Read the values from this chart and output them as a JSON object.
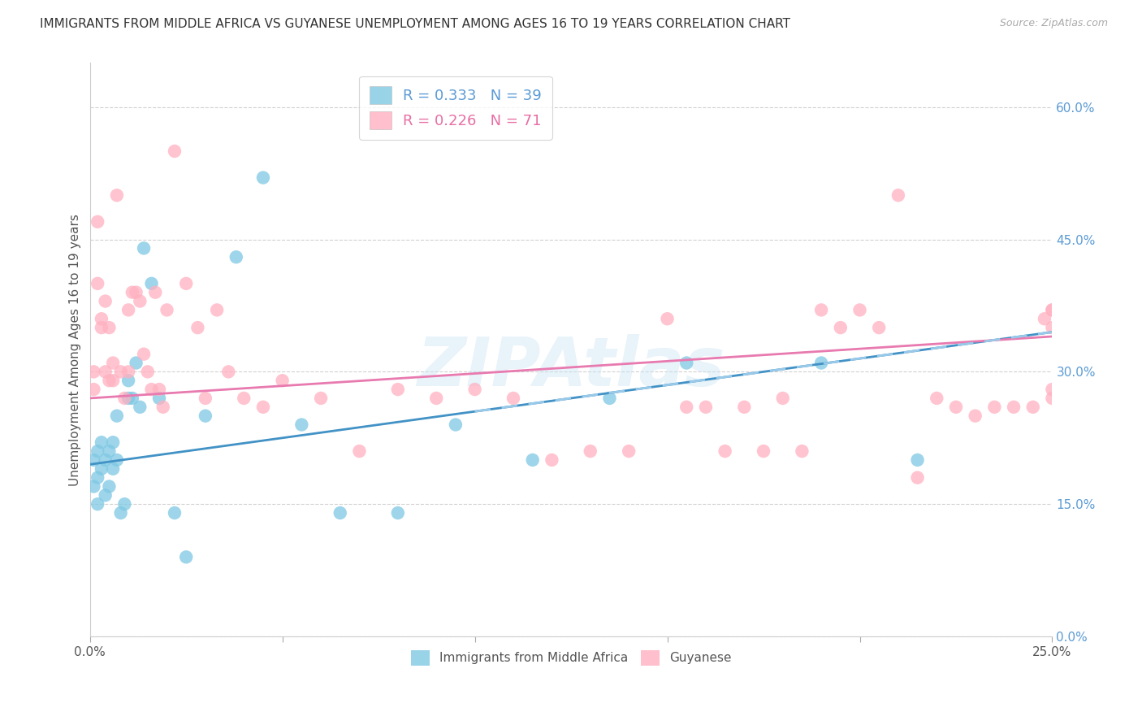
{
  "title": "IMMIGRANTS FROM MIDDLE AFRICA VS GUYANESE UNEMPLOYMENT AMONG AGES 16 TO 19 YEARS CORRELATION CHART",
  "source": "Source: ZipAtlas.com",
  "ylabel": "Unemployment Among Ages 16 to 19 years",
  "series1_label": "Immigrants from Middle Africa",
  "series2_label": "Guyanese",
  "R1": 0.333,
  "N1": 39,
  "R2": 0.226,
  "N2": 71,
  "color1": "#7ec8e3",
  "color2": "#ffb0c0",
  "trendline1_color": "#4292c6",
  "trendline1_dash_color": "#99c9e8",
  "trendline2_color": "#e87ab0",
  "xlim": [
    0.0,
    0.25
  ],
  "ylim": [
    0.0,
    0.65
  ],
  "right_yticks": [
    0.0,
    0.15,
    0.3,
    0.45,
    0.6
  ],
  "right_yticklabels": [
    "0.0%",
    "15.0%",
    "30.0%",
    "45.0%",
    "60.0%"
  ],
  "bottom_xticks": [
    0.0,
    0.05,
    0.1,
    0.15,
    0.2,
    0.25
  ],
  "bottom_xticklabels": [
    "0.0%",
    "",
    "",
    "",
    "",
    "25.0%"
  ],
  "watermark": "ZIPAtlas",
  "series1_x": [
    0.001,
    0.001,
    0.002,
    0.002,
    0.002,
    0.003,
    0.003,
    0.004,
    0.004,
    0.005,
    0.005,
    0.006,
    0.006,
    0.007,
    0.007,
    0.008,
    0.009,
    0.01,
    0.01,
    0.011,
    0.012,
    0.013,
    0.014,
    0.016,
    0.018,
    0.022,
    0.025,
    0.03,
    0.038,
    0.045,
    0.055,
    0.065,
    0.08,
    0.095,
    0.115,
    0.135,
    0.155,
    0.19,
    0.215
  ],
  "series1_y": [
    0.2,
    0.17,
    0.21,
    0.18,
    0.15,
    0.19,
    0.22,
    0.2,
    0.16,
    0.21,
    0.17,
    0.22,
    0.19,
    0.25,
    0.2,
    0.14,
    0.15,
    0.27,
    0.29,
    0.27,
    0.31,
    0.26,
    0.44,
    0.4,
    0.27,
    0.14,
    0.09,
    0.25,
    0.43,
    0.52,
    0.24,
    0.14,
    0.14,
    0.24,
    0.2,
    0.27,
    0.31,
    0.31,
    0.2
  ],
  "series2_x": [
    0.001,
    0.001,
    0.002,
    0.002,
    0.003,
    0.003,
    0.004,
    0.004,
    0.005,
    0.005,
    0.006,
    0.006,
    0.007,
    0.008,
    0.009,
    0.01,
    0.01,
    0.011,
    0.012,
    0.013,
    0.014,
    0.015,
    0.016,
    0.017,
    0.018,
    0.019,
    0.02,
    0.022,
    0.025,
    0.028,
    0.03,
    0.033,
    0.036,
    0.04,
    0.045,
    0.05,
    0.06,
    0.07,
    0.08,
    0.09,
    0.1,
    0.11,
    0.12,
    0.13,
    0.14,
    0.15,
    0.155,
    0.16,
    0.165,
    0.17,
    0.175,
    0.18,
    0.185,
    0.19,
    0.195,
    0.2,
    0.205,
    0.21,
    0.215,
    0.22,
    0.225,
    0.23,
    0.235,
    0.24,
    0.245,
    0.248,
    0.25,
    0.25,
    0.25,
    0.25,
    0.25
  ],
  "series2_y": [
    0.3,
    0.28,
    0.47,
    0.4,
    0.36,
    0.35,
    0.38,
    0.3,
    0.35,
    0.29,
    0.31,
    0.29,
    0.5,
    0.3,
    0.27,
    0.37,
    0.3,
    0.39,
    0.39,
    0.38,
    0.32,
    0.3,
    0.28,
    0.39,
    0.28,
    0.26,
    0.37,
    0.55,
    0.4,
    0.35,
    0.27,
    0.37,
    0.3,
    0.27,
    0.26,
    0.29,
    0.27,
    0.21,
    0.28,
    0.27,
    0.28,
    0.27,
    0.2,
    0.21,
    0.21,
    0.36,
    0.26,
    0.26,
    0.21,
    0.26,
    0.21,
    0.27,
    0.21,
    0.37,
    0.35,
    0.37,
    0.35,
    0.5,
    0.18,
    0.27,
    0.26,
    0.25,
    0.26,
    0.26,
    0.26,
    0.36,
    0.35,
    0.27,
    0.28,
    0.37,
    0.37
  ],
  "background_color": "#ffffff",
  "grid_color": "#cccccc",
  "title_fontsize": 11,
  "axis_label_fontsize": 11,
  "tick_fontsize": 11,
  "legend_fontsize": 13,
  "trendline1_intercept": 0.195,
  "trendline1_slope": 0.6,
  "trendline2_intercept": 0.27,
  "trendline2_slope": 0.28
}
